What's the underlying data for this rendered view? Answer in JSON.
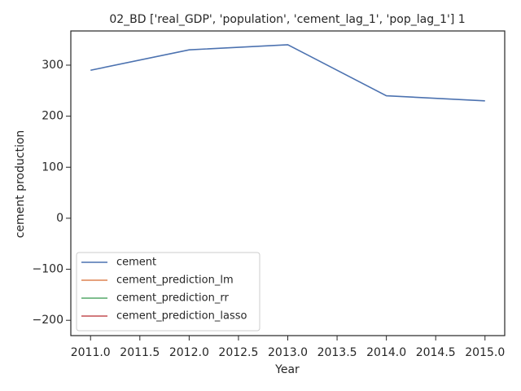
{
  "chart_data": {
    "type": "line",
    "title": "02_BD ['real_GDP', 'population', 'cement_lag_1', 'pop_lag_1'] 1",
    "xlabel": "Year",
    "ylabel": "cement production",
    "x": [
      2011,
      2012,
      2013,
      2014,
      2015
    ],
    "series": [
      {
        "name": "cement",
        "color": "#4c72b0",
        "values": [
          290,
          330,
          340,
          240,
          230
        ]
      },
      {
        "name": "cement_prediction_lm",
        "color": "#dd8452",
        "values": [
          null,
          null,
          null,
          null,
          null
        ]
      },
      {
        "name": "cement_prediction_rr",
        "color": "#55a868",
        "values": [
          null,
          null,
          null,
          null,
          null
        ]
      },
      {
        "name": "cement_prediction_lasso",
        "color": "#c44e52",
        "values": [
          null,
          null,
          null,
          null,
          null
        ]
      }
    ],
    "xlim": [
      2010.8,
      2015.2
    ],
    "xticks": [
      {
        "value": 2011,
        "label": "2011.0"
      },
      {
        "value": 2011.5,
        "label": "2011.5"
      },
      {
        "value": 2012,
        "label": "2012.0"
      },
      {
        "value": 2012.5,
        "label": "2012.5"
      },
      {
        "value": 2013,
        "label": "2013.0"
      },
      {
        "value": 2013.5,
        "label": "2013.5"
      },
      {
        "value": 2014,
        "label": "2014.0"
      },
      {
        "value": 2014.5,
        "label": "2014.5"
      },
      {
        "value": 2015,
        "label": "2015.0"
      }
    ],
    "ylim": [
      -230,
      367
    ],
    "yticks": [
      {
        "value": -200,
        "label": "−200"
      },
      {
        "value": -100,
        "label": "−100"
      },
      0,
      100,
      200,
      300
    ],
    "legend": "lower left",
    "grid": false
  }
}
